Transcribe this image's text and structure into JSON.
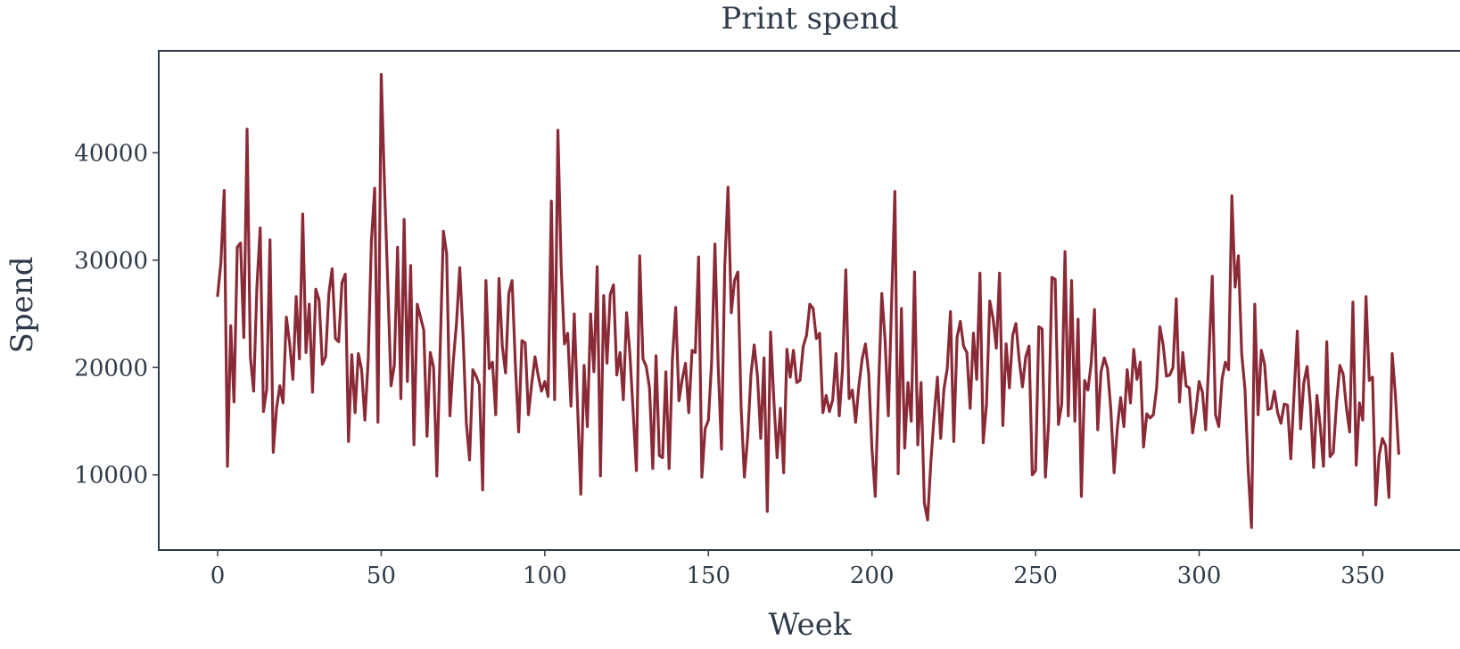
{
  "chart_data": {
    "type": "line",
    "title": "Print spend",
    "xlabel": "Week",
    "ylabel": "Spend",
    "xlim": [
      -18,
      380
    ],
    "ylim": [
      3000,
      49500
    ],
    "xticks": [
      0,
      50,
      100,
      150,
      200,
      250,
      300,
      350
    ],
    "yticks": [
      10000,
      20000,
      30000,
      40000
    ],
    "grid": false,
    "legend": "none",
    "colors": {
      "line": "#8b2a37",
      "text": "#2f3b4a",
      "frame": "#2f3b4a"
    },
    "series": [
      {
        "values": [
          26700,
          29800,
          36500,
          10800,
          23900,
          16800,
          31200,
          31600,
          22800,
          42200,
          21000,
          17800,
          27500,
          33000,
          15900,
          18000,
          31900,
          12100,
          16200,
          18300,
          16700,
          24700,
          22300,
          18900,
          26600,
          20800,
          34300,
          21400,
          25900,
          17700,
          27300,
          26300,
          20300,
          21000,
          26900,
          29200,
          22700,
          22400,
          27900,
          28700,
          13100,
          21200,
          15800,
          21300,
          19800,
          15100,
          20600,
          31800,
          36700,
          14900,
          47300,
          37000,
          27800,
          18300,
          20200,
          31200,
          17100,
          33800,
          18700,
          29500,
          12800,
          25900,
          24700,
          23500,
          13600,
          21400,
          20000,
          9900,
          21500,
          32700,
          30600,
          15500,
          20500,
          24100,
          29300,
          23100,
          14900,
          11400,
          19800,
          19200,
          18400,
          8600,
          28100,
          19900,
          20500,
          15600,
          28300,
          22000,
          19500,
          26900,
          28100,
          20300,
          14000,
          22500,
          22300,
          15600,
          18500,
          21000,
          19200,
          17800,
          18700,
          17300,
          35500,
          17000,
          42100,
          29400,
          22200,
          23200,
          16400,
          25000,
          16500,
          8200,
          20200,
          14500,
          25000,
          19600,
          29400,
          9900,
          26700,
          20400,
          26800,
          27700,
          19300,
          21400,
          17000,
          25100,
          21300,
          15900,
          10400,
          30400,
          20800,
          20100,
          18100,
          10600,
          21100,
          11800,
          11600,
          19600,
          10600,
          20800,
          25600,
          16900,
          18900,
          20400,
          15800,
          21600,
          21400,
          30300,
          9800,
          14300,
          15100,
          20600,
          31500,
          20100,
          12400,
          29400,
          36800,
          25100,
          28100,
          28900,
          16300,
          9800,
          13500,
          19300,
          22100,
          19200,
          13400,
          20900,
          6600,
          23300,
          17000,
          11600,
          16200,
          10200,
          21700,
          19100,
          21600,
          18600,
          18800,
          22000,
          23000,
          25900,
          25500,
          22700,
          23200,
          15800,
          17400,
          15900,
          17000,
          21300,
          15500,
          19900,
          29100,
          17100,
          17900,
          14900,
          18300,
          20800,
          22200,
          19400,
          12400,
          8000,
          18000,
          26900,
          22600,
          15500,
          26100,
          36400,
          10100,
          25500,
          12500,
          18600,
          15000,
          28900,
          12800,
          18600,
          7400,
          5800,
          11200,
          15500,
          19100,
          13400,
          18000,
          19900,
          25200,
          13100,
          22800,
          24300,
          22000,
          21400,
          16200,
          23200,
          18900,
          28800,
          13000,
          16600,
          26200,
          24600,
          21800,
          28800,
          14600,
          22200,
          18100,
          23000,
          24100,
          20700,
          18200,
          21000,
          22000,
          10000,
          10400,
          23800,
          23600,
          9800,
          14900,
          28400,
          28200,
          14700,
          16600,
          30800,
          15500,
          28100,
          15000,
          24500,
          8000,
          18800,
          17900,
          20400,
          25400,
          14200,
          19600,
          20900,
          19900,
          16100,
          10200,
          14400,
          17200,
          14500,
          19800,
          16700,
          21700,
          18900,
          20500,
          12600,
          15700,
          15300,
          15600,
          18100,
          23800,
          22100,
          19200,
          19300,
          20000,
          26400,
          16800,
          21400,
          18300,
          18100,
          13900,
          16000,
          18700,
          17700,
          14200,
          21000,
          28500,
          15600,
          14500,
          18900,
          20500,
          19800,
          36000,
          27500,
          30400,
          21300,
          18000,
          10400,
          5100,
          25900,
          15600,
          21600,
          20300,
          16100,
          16200,
          17800,
          15800,
          14800,
          16600,
          16500,
          11500,
          17500,
          23400,
          14300,
          18600,
          20100,
          16500,
          10700,
          17400,
          14600,
          10800,
          22400,
          11700,
          12100,
          16700,
          20200,
          19400,
          16300,
          14000,
          26100,
          10900,
          16700,
          15100,
          26600,
          18800,
          19100,
          7200,
          11800,
          13400,
          12700,
          7900,
          21300,
          17400,
          12000
        ]
      }
    ]
  }
}
